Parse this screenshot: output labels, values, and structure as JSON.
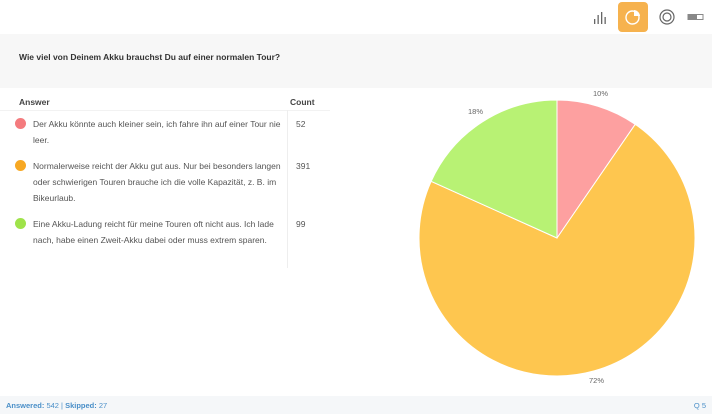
{
  "toolbar": {
    "buttons": [
      {
        "name": "bar-chart-view",
        "icon": "bar-chart-icon",
        "active": false
      },
      {
        "name": "pie-chart-view",
        "icon": "pie-chart-icon",
        "active": true
      },
      {
        "name": "donut-chart-view",
        "icon": "donut-chart-icon",
        "active": false
      },
      {
        "name": "table-view",
        "icon": "toggle-icon",
        "active": false
      }
    ],
    "accent_color": "#f6b24e"
  },
  "question": {
    "text": "Wie viel von Deinem Akku brauchst Du auf einer normalen Tour?"
  },
  "table": {
    "headers": {
      "answer": "Answer",
      "count": "Count"
    },
    "rows": [
      {
        "color": "#f47b7e",
        "answer": "Der Akku könnte auch kleiner sein, ich fahre ihn auf einer Tour nie leer.",
        "count": "52"
      },
      {
        "color": "#f7a823",
        "answer": "Normalerweise reicht der Akku gut aus. Nur bei besonders langen oder schwierigen Touren brauche ich die volle Kapazität, z. B. im Bikeurlaub.",
        "count": "391"
      },
      {
        "color": "#9fe34a",
        "answer": "Eine Akku-Ladung reicht für meine Touren oft nicht aus. Ich lade nach, habe einen Zweit-Akku dabei oder muss extrem sparen.",
        "count": "99"
      }
    ]
  },
  "footer": {
    "answered_label": "Answered:",
    "answered_value": "542",
    "separator": "|",
    "skipped_label": "Skipped:",
    "skipped_value": "27",
    "question_number": "Q 5"
  },
  "chart_data": {
    "type": "pie",
    "title": "Wie viel von Deinem Akku brauchst Du auf einer normalen Tour?",
    "categories": [
      "Der Akku könnte auch kleiner sein, ich fahre ihn auf einer Tour nie leer.",
      "Normalerweise reicht der Akku gut aus. Nur bei besonders langen oder schwierigen Touren brauche ich die volle Kapazität, z. B. im Bikeurlaub.",
      "Eine Akku-Ladung reicht für meine Touren oft nicht aus. Ich lade nach, habe einen Zweit-Akku dabei oder muss extrem sparen."
    ],
    "values": [
      52,
      391,
      99
    ],
    "percent_labels": [
      "10%",
      "72%",
      "18%"
    ],
    "colors": [
      "#fda0a0",
      "#fec64f",
      "#b8f274"
    ],
    "legend_position": "left-table"
  }
}
